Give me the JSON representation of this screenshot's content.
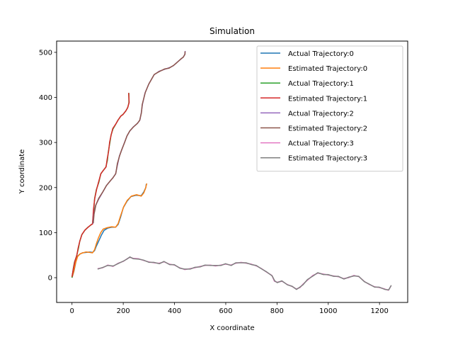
{
  "chart_data": {
    "type": "line",
    "title": "Simulation",
    "xlabel": "X coordinate",
    "ylabel": "Y coordinate",
    "xlim": [
      -60,
      1310
    ],
    "ylim": [
      -55,
      525
    ],
    "xticks": [
      0,
      200,
      400,
      600,
      800,
      1000,
      1200
    ],
    "yticks": [
      0,
      100,
      200,
      300,
      400,
      500
    ],
    "grid": false,
    "legend_position": "top-right",
    "series": [
      {
        "name": "Actual Trajectory:0",
        "color": "#1f77b4",
        "points": [
          [
            0,
            0
          ],
          [
            8,
            15
          ],
          [
            15,
            35
          ],
          [
            22,
            48
          ],
          [
            30,
            52
          ],
          [
            40,
            55
          ],
          [
            55,
            56
          ],
          [
            70,
            57
          ],
          [
            80,
            56
          ],
          [
            88,
            60
          ],
          [
            95,
            70
          ],
          [
            105,
            82
          ],
          [
            115,
            95
          ],
          [
            125,
            105
          ],
          [
            140,
            110
          ],
          [
            155,
            112
          ],
          [
            170,
            112
          ],
          [
            180,
            118
          ],
          [
            190,
            135
          ],
          [
            200,
            155
          ],
          [
            215,
            170
          ],
          [
            230,
            180
          ],
          [
            250,
            183
          ],
          [
            270,
            182
          ],
          [
            280,
            190
          ],
          [
            288,
            200
          ],
          [
            290,
            208
          ]
        ]
      },
      {
        "name": "Estimated Trajectory:0",
        "color": "#ff7f0e",
        "points": [
          [
            0,
            0
          ],
          [
            6,
            12
          ],
          [
            14,
            33
          ],
          [
            22,
            47
          ],
          [
            32,
            53
          ],
          [
            42,
            55
          ],
          [
            55,
            57
          ],
          [
            70,
            56
          ],
          [
            80,
            55
          ],
          [
            88,
            62
          ],
          [
            95,
            75
          ],
          [
            103,
            88
          ],
          [
            112,
            100
          ],
          [
            122,
            108
          ],
          [
            138,
            111
          ],
          [
            155,
            113
          ],
          [
            170,
            112
          ],
          [
            180,
            120
          ],
          [
            190,
            138
          ],
          [
            202,
            158
          ],
          [
            216,
            172
          ],
          [
            232,
            181
          ],
          [
            252,
            184
          ],
          [
            270,
            181
          ],
          [
            280,
            188
          ],
          [
            287,
            198
          ],
          [
            292,
            209
          ]
        ]
      },
      {
        "name": "Actual Trajectory:1",
        "color": "#2ca02c",
        "points": [
          [
            0,
            0
          ],
          [
            5,
            20
          ],
          [
            10,
            35
          ],
          [
            18,
            48
          ],
          [
            25,
            65
          ],
          [
            30,
            80
          ],
          [
            38,
            95
          ],
          [
            50,
            105
          ],
          [
            62,
            112
          ],
          [
            72,
            116
          ],
          [
            80,
            120
          ],
          [
            85,
            150
          ],
          [
            88,
            175
          ],
          [
            95,
            195
          ],
          [
            105,
            212
          ],
          [
            112,
            230
          ],
          [
            122,
            238
          ],
          [
            132,
            245
          ],
          [
            138,
            260
          ],
          [
            142,
            280
          ],
          [
            148,
            300
          ],
          [
            152,
            316
          ],
          [
            160,
            330
          ],
          [
            170,
            340
          ],
          [
            180,
            350
          ],
          [
            190,
            358
          ],
          [
            200,
            363
          ],
          [
            210,
            370
          ],
          [
            218,
            378
          ],
          [
            222,
            388
          ],
          [
            222,
            410
          ]
        ]
      },
      {
        "name": "Estimated Trajectory:1",
        "color": "#d62728",
        "points": [
          [
            0,
            2
          ],
          [
            6,
            22
          ],
          [
            11,
            36
          ],
          [
            19,
            50
          ],
          [
            24,
            66
          ],
          [
            31,
            82
          ],
          [
            39,
            96
          ],
          [
            51,
            106
          ],
          [
            61,
            111
          ],
          [
            73,
            117
          ],
          [
            80,
            119
          ],
          [
            84,
            152
          ],
          [
            89,
            176
          ],
          [
            96,
            196
          ],
          [
            104,
            213
          ],
          [
            113,
            231
          ],
          [
            121,
            237
          ],
          [
            133,
            246
          ],
          [
            137,
            262
          ],
          [
            143,
            281
          ],
          [
            147,
            301
          ],
          [
            153,
            317
          ],
          [
            159,
            331
          ],
          [
            171,
            341
          ],
          [
            179,
            349
          ],
          [
            191,
            359
          ],
          [
            199,
            362
          ],
          [
            211,
            371
          ],
          [
            217,
            377
          ],
          [
            223,
            389
          ],
          [
            221,
            410
          ]
        ]
      },
      {
        "name": "Actual Trajectory:2",
        "color": "#9467bd",
        "points": [
          [
            82,
            120
          ],
          [
            85,
            140
          ],
          [
            92,
            160
          ],
          [
            105,
            175
          ],
          [
            120,
            190
          ],
          [
            135,
            205
          ],
          [
            150,
            215
          ],
          [
            160,
            222
          ],
          [
            170,
            230
          ],
          [
            178,
            252
          ],
          [
            185,
            270
          ],
          [
            195,
            285
          ],
          [
            205,
            300
          ],
          [
            215,
            315
          ],
          [
            225,
            325
          ],
          [
            240,
            335
          ],
          [
            255,
            342
          ],
          [
            265,
            350
          ],
          [
            270,
            365
          ],
          [
            275,
            385
          ],
          [
            285,
            410
          ],
          [
            300,
            430
          ],
          [
            320,
            450
          ],
          [
            340,
            458
          ],
          [
            360,
            462
          ],
          [
            380,
            466
          ],
          [
            395,
            470
          ],
          [
            410,
            478
          ],
          [
            425,
            485
          ],
          [
            435,
            490
          ],
          [
            440,
            495
          ],
          [
            442,
            503
          ]
        ]
      },
      {
        "name": "Estimated Trajectory:2",
        "color": "#8c564b",
        "points": [
          [
            83,
            121
          ],
          [
            86,
            141
          ],
          [
            93,
            161
          ],
          [
            104,
            176
          ],
          [
            121,
            191
          ],
          [
            134,
            204
          ],
          [
            151,
            216
          ],
          [
            159,
            221
          ],
          [
            171,
            231
          ],
          [
            177,
            253
          ],
          [
            186,
            271
          ],
          [
            194,
            284
          ],
          [
            206,
            301
          ],
          [
            214,
            314
          ],
          [
            226,
            326
          ],
          [
            239,
            334
          ],
          [
            256,
            343
          ],
          [
            264,
            349
          ],
          [
            271,
            366
          ],
          [
            274,
            384
          ],
          [
            286,
            411
          ],
          [
            299,
            429
          ],
          [
            321,
            451
          ],
          [
            339,
            457
          ],
          [
            361,
            463
          ],
          [
            379,
            465
          ],
          [
            396,
            471
          ],
          [
            409,
            477
          ],
          [
            426,
            486
          ],
          [
            434,
            489
          ],
          [
            441,
            496
          ],
          [
            441,
            502
          ]
        ]
      },
      {
        "name": "Actual Trajectory:3",
        "color": "#e377c2",
        "points": [
          [
            100,
            20
          ],
          [
            120,
            22
          ],
          [
            140,
            28
          ],
          [
            160,
            25
          ],
          [
            180,
            32
          ],
          [
            200,
            36
          ],
          [
            215,
            42
          ],
          [
            225,
            45
          ],
          [
            240,
            43
          ],
          [
            260,
            42
          ],
          [
            280,
            38
          ],
          [
            300,
            35
          ],
          [
            320,
            33
          ],
          [
            340,
            32
          ],
          [
            360,
            35
          ],
          [
            380,
            30
          ],
          [
            400,
            28
          ],
          [
            420,
            22
          ],
          [
            440,
            18
          ],
          [
            460,
            20
          ],
          [
            480,
            22
          ],
          [
            500,
            25
          ],
          [
            520,
            27
          ],
          [
            540,
            28
          ],
          [
            560,
            26
          ],
          [
            580,
            28
          ],
          [
            600,
            30
          ],
          [
            620,
            28
          ],
          [
            640,
            32
          ],
          [
            660,
            34
          ],
          [
            680,
            32
          ],
          [
            700,
            30
          ],
          [
            720,
            26
          ],
          [
            740,
            20
          ],
          [
            760,
            12
          ],
          [
            780,
            5
          ],
          [
            790,
            -8
          ],
          [
            800,
            -10
          ],
          [
            820,
            -8
          ],
          [
            840,
            -15
          ],
          [
            860,
            -20
          ],
          [
            875,
            -25
          ],
          [
            890,
            -22
          ],
          [
            900,
            -15
          ],
          [
            920,
            -5
          ],
          [
            940,
            5
          ],
          [
            960,
            10
          ],
          [
            980,
            8
          ],
          [
            1000,
            6
          ],
          [
            1020,
            4
          ],
          [
            1040,
            2
          ],
          [
            1060,
            -2
          ],
          [
            1080,
            0
          ],
          [
            1100,
            5
          ],
          [
            1120,
            2
          ],
          [
            1140,
            -8
          ],
          [
            1160,
            -15
          ],
          [
            1180,
            -20
          ],
          [
            1200,
            -22
          ],
          [
            1220,
            -25
          ],
          [
            1235,
            -28
          ],
          [
            1245,
            -18
          ]
        ]
      },
      {
        "name": "Estimated Trajectory:3",
        "color": "#7f7f7f",
        "points": [
          [
            100,
            19
          ],
          [
            121,
            23
          ],
          [
            139,
            27
          ],
          [
            161,
            26
          ],
          [
            179,
            31
          ],
          [
            201,
            37
          ],
          [
            214,
            41
          ],
          [
            226,
            46
          ],
          [
            239,
            42
          ],
          [
            261,
            41
          ],
          [
            279,
            39
          ],
          [
            301,
            34
          ],
          [
            319,
            34
          ],
          [
            341,
            31
          ],
          [
            359,
            36
          ],
          [
            381,
            29
          ],
          [
            399,
            29
          ],
          [
            421,
            21
          ],
          [
            439,
            19
          ],
          [
            461,
            19
          ],
          [
            479,
            23
          ],
          [
            501,
            24
          ],
          [
            519,
            28
          ],
          [
            541,
            27
          ],
          [
            559,
            27
          ],
          [
            581,
            27
          ],
          [
            599,
            31
          ],
          [
            621,
            27
          ],
          [
            639,
            33
          ],
          [
            661,
            33
          ],
          [
            679,
            33
          ],
          [
            701,
            29
          ],
          [
            719,
            27
          ],
          [
            741,
            19
          ],
          [
            759,
            13
          ],
          [
            781,
            4
          ],
          [
            791,
            -7
          ],
          [
            801,
            -11
          ],
          [
            819,
            -7
          ],
          [
            841,
            -16
          ],
          [
            859,
            -19
          ],
          [
            876,
            -26
          ],
          [
            889,
            -21
          ],
          [
            901,
            -16
          ],
          [
            919,
            -4
          ],
          [
            941,
            4
          ],
          [
            959,
            11
          ],
          [
            981,
            7
          ],
          [
            999,
            7
          ],
          [
            1021,
            3
          ],
          [
            1039,
            3
          ],
          [
            1061,
            -3
          ],
          [
            1079,
            1
          ],
          [
            1101,
            4
          ],
          [
            1119,
            3
          ],
          [
            1141,
            -9
          ],
          [
            1159,
            -14
          ],
          [
            1181,
            -21
          ],
          [
            1199,
            -21
          ],
          [
            1221,
            -26
          ],
          [
            1236,
            -27
          ],
          [
            1246,
            -17
          ]
        ]
      }
    ]
  }
}
